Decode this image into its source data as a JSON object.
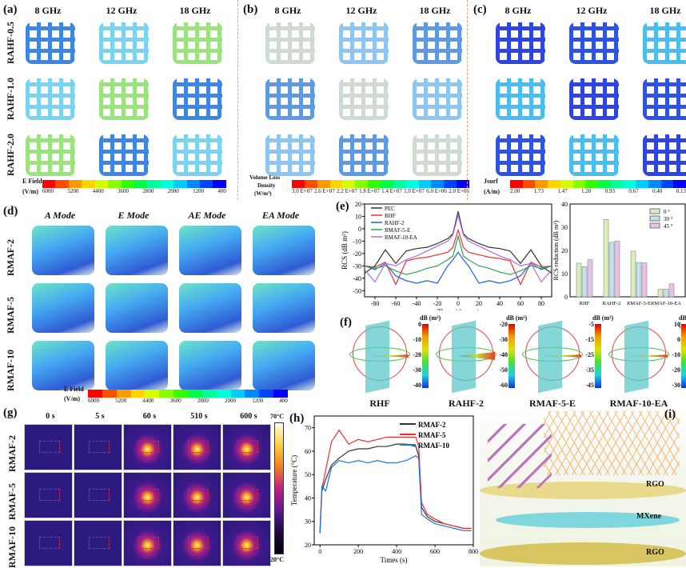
{
  "panels": {
    "a": "(a)",
    "b": "(b)",
    "c": "(c)",
    "d": "(d)",
    "e": "(e)",
    "f": "(f)",
    "g": "(g)",
    "h": "(h)",
    "i": "(i)"
  },
  "freq": [
    "8 GHz",
    "12 GHz",
    "18 GHz"
  ],
  "abc_rows": [
    "RAHF-0.5",
    "RAHF-1.0",
    "RAHF-2.0"
  ],
  "colorbars": {
    "efield": {
      "label1": "E Field",
      "label2": "(V/m)",
      "ticks": [
        "6000",
        "5200",
        "4400",
        "3600",
        "2800",
        "2000",
        "1200",
        "400"
      ]
    },
    "vld": {
      "label1": "Volume Loss",
      "label2": "Density",
      "label3": "(W/m³)",
      "ticks": [
        "3.0 E+07",
        "2.6 E+07",
        "2.2 E+07",
        "1.8 E+07",
        "1.4 E+07",
        "1.0 E+07",
        "6.0 E+06",
        "2.0 E+06"
      ]
    },
    "jsurf": {
      "label1": "Jsurf",
      "label2": "(A/m)",
      "ticks": [
        "2.00",
        "1.73",
        "1.47",
        "1.20",
        "0.93",
        "0.67",
        "0.40",
        "0.13"
      ]
    },
    "colors": [
      "#ff0000",
      "#ff4d00",
      "#ff9900",
      "#ffd500",
      "#d4ff00",
      "#88ff00",
      "#33ff00",
      "#00ff44",
      "#00ff99",
      "#00ffdd",
      "#00ccff",
      "#0088ff",
      "#0044ff",
      "#0000ff"
    ]
  },
  "d": {
    "modes": [
      "A Mode",
      "E Mode",
      "AE Mode",
      "EA Mode"
    ],
    "rows": [
      "RMAF-2",
      "RMAF-5",
      "RMAF-10"
    ]
  },
  "f": {
    "unit": "dB (m²)",
    "items": [
      {
        "label": "RHF",
        "ticks": [
          "0",
          "-10",
          "-20",
          "-30",
          "-40"
        ]
      },
      {
        "label": "RAHF-2",
        "ticks": [
          "-20",
          "-30",
          "-40",
          "-50",
          "-60"
        ]
      },
      {
        "label": "RMAF-5-E",
        "ticks": [
          "-5",
          "-15",
          "-25",
          "-35",
          "-45"
        ]
      },
      {
        "label": "RMAF-10-EA",
        "ticks": [
          "10",
          "0",
          "-10",
          "-20",
          "-30"
        ]
      }
    ]
  },
  "g": {
    "times": [
      "0 s",
      "5 s",
      "60 s",
      "510 s",
      "600 s"
    ],
    "rows": [
      "RMAF-2",
      "RMAF-5",
      "RMAF-10"
    ],
    "tmax": "70°C",
    "tmin": "20°C"
  },
  "i": {
    "layers": [
      "RGO",
      "MXene",
      "RGO"
    ]
  },
  "chart_data": [
    {
      "type": "line",
      "panel": "e",
      "xlabel": "Theta (degree)",
      "ylabel": "RCS (dB m²)",
      "xlim": [
        -90,
        90
      ],
      "ylim": [
        -55,
        20
      ],
      "xticks": [
        -80,
        -60,
        -40,
        -20,
        0,
        20,
        40,
        60,
        80
      ],
      "yticks": [
        -50,
        -40,
        -30,
        -20,
        -10,
        0,
        10,
        20
      ],
      "legend": "top-left",
      "x": [
        -90,
        -80,
        -70,
        -60,
        -50,
        -40,
        -30,
        -20,
        -10,
        -5,
        0,
        5,
        10,
        20,
        30,
        40,
        50,
        60,
        70,
        80,
        90
      ],
      "series": [
        {
          "name": "PEC",
          "color": "#333333",
          "values": [
            -36,
            -30,
            -17,
            -28,
            -18,
            -16,
            -15,
            -12,
            -8,
            -4,
            14,
            -4,
            -8,
            -12,
            -15,
            -16,
            -18,
            -28,
            -17,
            -30,
            -36
          ]
        },
        {
          "name": "RHF",
          "color": "#ee3030",
          "values": [
            -30,
            -31,
            -27,
            -45,
            -26,
            -24,
            -23,
            -21,
            -19,
            -15,
            -1,
            -15,
            -19,
            -21,
            -23,
            -24,
            -26,
            -45,
            -27,
            -31,
            -30
          ]
        },
        {
          "name": "RAHF-2",
          "color": "#2060e0",
          "values": [
            -30,
            -33,
            -28,
            -38,
            -42,
            -44,
            -42,
            -44,
            -30,
            -25,
            -19,
            -25,
            -30,
            -44,
            -42,
            -44,
            -42,
            -38,
            -28,
            -33,
            -30
          ]
        },
        {
          "name": "RMAF-5-E",
          "color": "#30a060",
          "values": [
            -30,
            -32,
            -30,
            -34,
            -37,
            -35,
            -32,
            -30,
            -25,
            -22,
            -6,
            -22,
            -25,
            -30,
            -32,
            -35,
            -37,
            -34,
            -30,
            -32,
            -30
          ]
        },
        {
          "name": "RMAF-10-EA",
          "color": "#b070e0",
          "values": [
            -33,
            -43,
            -28,
            -30,
            -25,
            -22,
            -18,
            -14,
            -10,
            -5,
            11,
            -5,
            -10,
            -14,
            -18,
            -22,
            -25,
            -30,
            -28,
            -43,
            -33
          ]
        }
      ]
    },
    {
      "type": "bar",
      "panel": "e",
      "ylabel": "RCS reduction (dB m²)",
      "ylim": [
        0,
        40
      ],
      "yticks": [
        0,
        10,
        20,
        30,
        40
      ],
      "legend": "top-right",
      "categories": [
        "RHF",
        "RAHF-2",
        "RMAF-5-E",
        "RMAF-10-EA"
      ],
      "series": [
        {
          "name": "0 °",
          "color": "#dbedb8",
          "values": [
            14.5,
            33.3,
            19.7,
            3.3
          ]
        },
        {
          "name": "30 °",
          "color": "#c2e2ee",
          "values": [
            13.0,
            23.5,
            14.8,
            3.3
          ]
        },
        {
          "name": "45 °",
          "color": "#e8c2e8",
          "values": [
            16.0,
            24.0,
            14.6,
            5.6
          ]
        }
      ]
    },
    {
      "type": "line",
      "panel": "h",
      "xlabel": "Times (s)",
      "ylabel": "Temperature (°C)",
      "xlim": [
        -30,
        800
      ],
      "ylim": [
        20,
        75
      ],
      "xticks": [
        0,
        200,
        400,
        600,
        800
      ],
      "yticks": [
        20,
        30,
        40,
        50,
        60,
        70
      ],
      "legend": "top-right",
      "x": [
        0,
        10,
        30,
        60,
        100,
        150,
        200,
        250,
        300,
        350,
        400,
        450,
        500,
        515,
        530,
        560,
        600,
        650,
        700,
        750,
        790
      ],
      "series": [
        {
          "name": "RMAF-2",
          "color": "#333333",
          "values": [
            25,
            43,
            48,
            54,
            57,
            60,
            61,
            61,
            62,
            62,
            63,
            63,
            62,
            58,
            36,
            32,
            30,
            29,
            28,
            27,
            27
          ]
        },
        {
          "name": "RMAF-5",
          "color": "#ee3030",
          "values": [
            26,
            44,
            52,
            64,
            69,
            63,
            65,
            64,
            65,
            66,
            66,
            66,
            66,
            62,
            38,
            33,
            31,
            29,
            28,
            27,
            27
          ]
        },
        {
          "name": "RMAF-10",
          "color": "#2070e0",
          "values": [
            25,
            45,
            43,
            53,
            56,
            55,
            56,
            55,
            56,
            55,
            55,
            56,
            58,
            57,
            33,
            31,
            29,
            28,
            27,
            26,
            26
          ]
        }
      ]
    }
  ]
}
